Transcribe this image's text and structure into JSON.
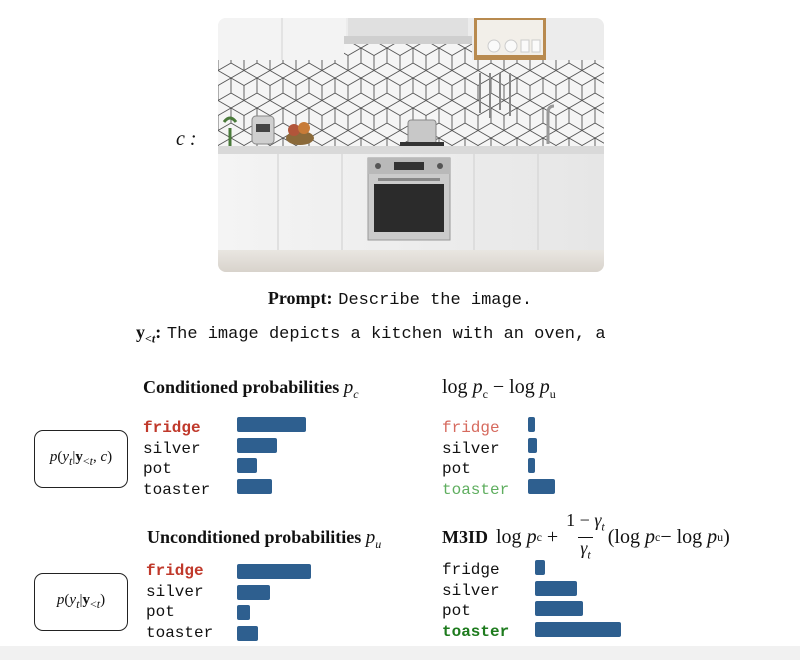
{
  "context_label": "c :",
  "prompt": {
    "label": "Prompt:",
    "text": "Describe the image."
  },
  "context": {
    "label": "y<t:",
    "text": "The image depicts a kitchen with an oven, a"
  },
  "boxes": {
    "conditioned": "p(yt|y<t, c)",
    "unconditioned": "p(yt|y<t)"
  },
  "panels": {
    "conditioned": {
      "title": "Conditioned probabilities pc",
      "words": [
        "fridge",
        "silver",
        "pot",
        "toaster"
      ],
      "values": [
        0.53,
        0.31,
        0.15,
        0.27
      ]
    },
    "log_diff": {
      "title": "log pc − log pu",
      "words": [
        "fridge",
        "silver",
        "pot",
        "toaster"
      ],
      "values": [
        0.05,
        0.07,
        0.05,
        0.21
      ]
    },
    "unconditioned": {
      "title": "Unconditioned probabilities pu",
      "words": [
        "fridge",
        "silver",
        "pot",
        "toaster"
      ],
      "values": [
        0.57,
        0.25,
        0.1,
        0.16
      ]
    },
    "m3id": {
      "title": "M3ID",
      "formula": "log pc + (1 − γt)/γt (log pc − log pu)",
      "words": [
        "fridge",
        "silver",
        "pot",
        "toaster"
      ],
      "values": [
        0.08,
        0.32,
        0.37,
        0.66
      ]
    }
  },
  "colors": {
    "bar": "#2e5f8f",
    "highlight_red": "#c0392b",
    "faded_red": "#d66a5e",
    "faded_green": "#5fae5f",
    "highlight_green": "#1e7b1e"
  }
}
